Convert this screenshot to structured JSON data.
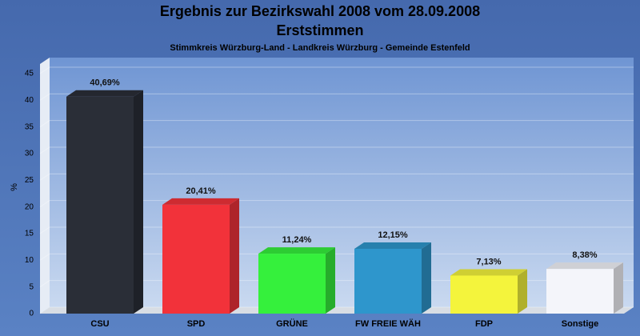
{
  "chart_data": {
    "type": "bar",
    "title": [
      "Ergebnis zur Bezirkswahl 2008 vom 28.09.2008",
      "Erststimmen"
    ],
    "subtitle": "Stimmkreis Würzburg-Land - Landkreis Würzburg - Gemeinde Estenfeld",
    "y_label": "%",
    "categories": [
      "CSU",
      "SPD",
      "GRÜNE",
      "FW FREIE WÄH",
      "FDP",
      "Sonstige"
    ],
    "values": [
      40.69,
      20.41,
      11.24,
      12.15,
      7.13,
      8.38
    ],
    "value_labels": [
      "40,69%",
      "20,41%",
      "11,24%",
      "12,15%",
      "7,13%",
      "8,38%"
    ],
    "colors": [
      "#2a2e37",
      "#f2323a",
      "#35f03c",
      "#2e96cc",
      "#f4f43c",
      "#f4f5fa"
    ],
    "ylim": [
      0,
      45
    ],
    "yticks": [
      0,
      5,
      10,
      15,
      20,
      25,
      30,
      35,
      40,
      45
    ],
    "grid": true
  }
}
